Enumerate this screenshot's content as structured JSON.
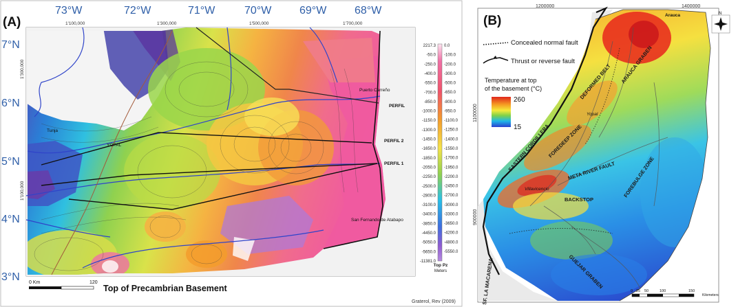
{
  "panel_a": {
    "label": "(A)",
    "title": "Top of Precambrian Basement",
    "credit": "Graterol, Rev (2009)",
    "scale_labels": [
      "0 Km",
      "120"
    ],
    "lon_labels": [
      "73°W",
      "72°W",
      "71°W",
      "70°W",
      "69°W",
      "68°W"
    ],
    "lat_labels": [
      "7°N",
      "6°N",
      "5°N",
      "4°N",
      "3°N"
    ],
    "top_coords": [
      "1'100,000",
      "1'300,000",
      "1'500,000",
      "1'700,000"
    ],
    "left_coords": [
      "1'300,000",
      "1'100,000"
    ],
    "legend": {
      "left_values": [
        "2217.3",
        "-50.0",
        "-250.0",
        "-400.0",
        "-550.0",
        "-700.0",
        "-850.0",
        "-1000.0",
        "-1150.0",
        "-1300.0",
        "-1450.0",
        "-1650.0",
        "-1850.0",
        "-2050.0",
        "-2250.0",
        "-2500.0",
        "-2800.0",
        "-3100.0",
        "-3400.0",
        "-3850.0",
        "-4450.0",
        "-5050.0",
        "-5650.0",
        "-11381.0"
      ],
      "right_values": [
        "0.0",
        "-100.0",
        "-200.0",
        "-300.0",
        "-500.0",
        "-650.0",
        "-800.0",
        "-950.0",
        "-1100.0",
        "-1250.0",
        "-1400.0",
        "-1550.0",
        "-1700.0",
        "-1950.0",
        "-2200.0",
        "-2450.0",
        "-2700.0",
        "-3000.0",
        "-3300.0",
        "-3650.0",
        "-4200.0",
        "-4800.0",
        "-5550.0"
      ],
      "title_line1": "Top Pz",
      "title_line2": "Meters"
    },
    "place_labels": [
      "Tunja",
      "YOPAL",
      "Puerto Carreño",
      "San Fernando de Atabapo"
    ],
    "profile_labels": [
      "PERFIL",
      "PERFIL 2",
      "PERFIL 1"
    ]
  },
  "panel_b": {
    "label": "(B)",
    "top_coords": [
      "1200000",
      "1400000"
    ],
    "left_coords": [
      "1100000",
      "900000"
    ],
    "fault_legend": [
      "Concealed normal fault",
      "Thrust or reverse fault"
    ],
    "temp_legend": {
      "title_line1": "Temperature at top",
      "title_line2": "of the basement (°C)",
      "max": "260",
      "min": "15"
    },
    "map_labels": [
      "Arauca",
      "ARAUCA GRABEN",
      "DEFORMED BELT",
      "EASTERN CORDILLERA",
      "Yopal",
      "FOREDEEP ZONE",
      "META RIVER FAULT",
      "FOREBULGE ZONE",
      "Villavicencio",
      "BACKSTOP",
      "GUEJAR GRABEN",
      "SF. LA MACARENA"
    ],
    "scale_labels": [
      "0",
      "25",
      "50",
      "100",
      "150"
    ],
    "scale_unit": "Kilometers",
    "north": "N"
  },
  "colors": {
    "deep_red": "#d7262b",
    "orange": "#f39c2b",
    "yellow": "#f5e34a",
    "green": "#8fd14f",
    "cyan": "#27c0e8",
    "blue": "#1f5fd6",
    "pink": "#f06fa5",
    "purple": "#8f5bd1",
    "map_blue": "#2a4fb1"
  }
}
